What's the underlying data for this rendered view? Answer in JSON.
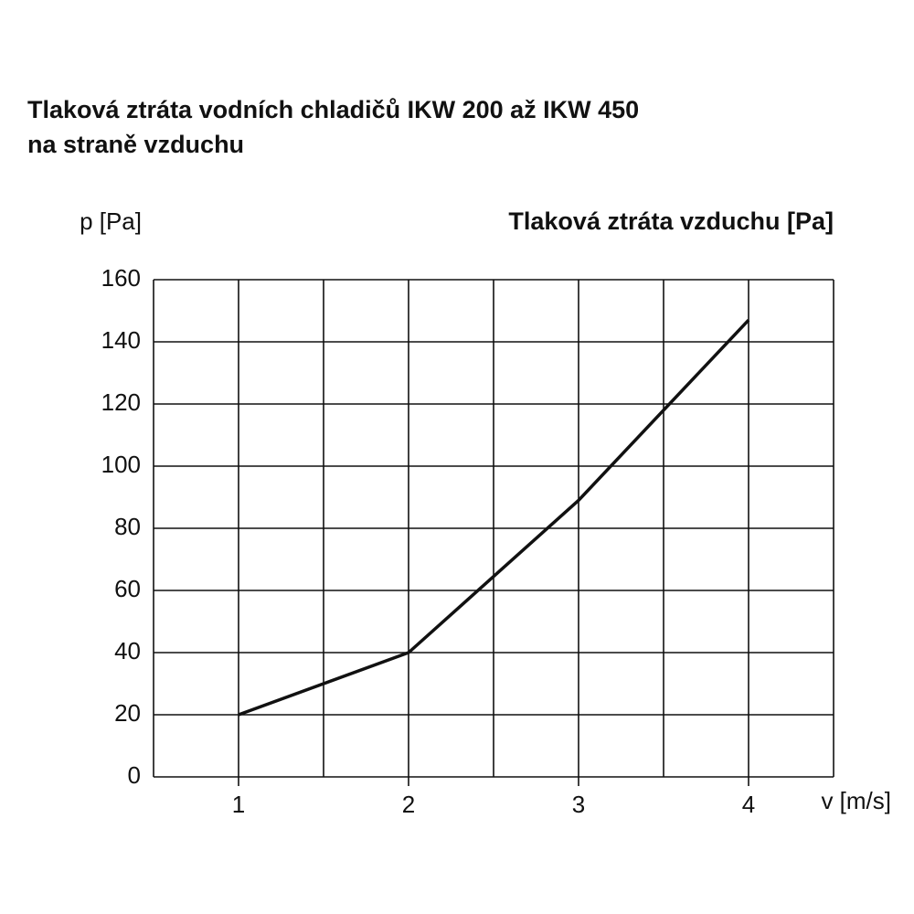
{
  "chart_data": {
    "type": "line",
    "title": [
      "Tlaková ztráta vodních chladičů IKW 200 až IKW 450",
      "na straně vzduchu"
    ],
    "subtitle": "Tlaková ztráta vzduchu [Pa]",
    "y_label": "p [Pa]",
    "x_label": "v [m/s]",
    "x": [
      1,
      2,
      3,
      4
    ],
    "series": [
      {
        "color": "#111111",
        "values": [
          20,
          40,
          89,
          147
        ]
      }
    ],
    "xlim": [
      0.5,
      4.5
    ],
    "xticks": [
      1,
      2,
      3,
      4
    ],
    "xminor": [
      0.5,
      1.5,
      2.5,
      3.5,
      4.5
    ],
    "ylim": [
      0,
      160
    ],
    "yticks": [
      0,
      20,
      40,
      60,
      80,
      100,
      120,
      140,
      160
    ],
    "grid": true
  }
}
